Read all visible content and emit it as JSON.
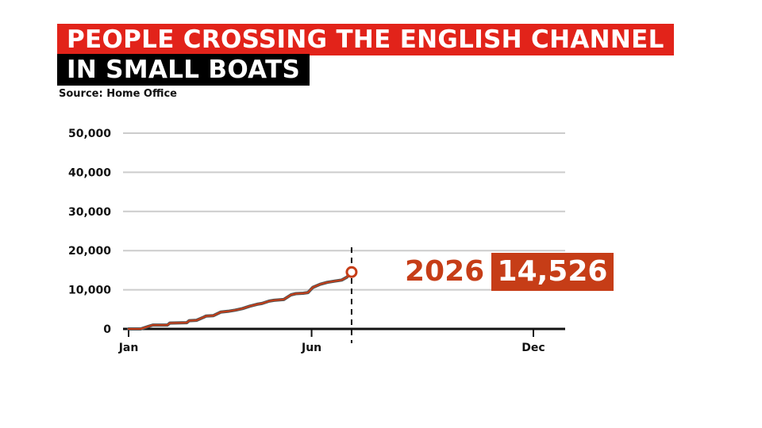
{
  "header": {
    "title_line1": "PEOPLE CROSSING THE ENGLISH CHANNEL",
    "title_line2": "IN SMALL BOATS",
    "source": "Source: Home Office"
  },
  "callout": {
    "year": "2026",
    "value": "14,526"
  },
  "colors": {
    "title_bg": "#e2231a",
    "title2_bg": "#000000",
    "accent": "#c63d17",
    "grid": "#cccccc",
    "axis": "#111111"
  },
  "chart_data": {
    "type": "line",
    "title": "PEOPLE CROSSING THE ENGLISH CHANNEL IN SMALL BOATS",
    "xlabel": "",
    "ylabel": "",
    "x_ticks": [
      {
        "label": "Jan",
        "day": 0
      },
      {
        "label": "Jun",
        "day": 151
      },
      {
        "label": "Dec",
        "day": 334
      }
    ],
    "x_range_days": [
      0,
      365
    ],
    "ylim": [
      0,
      50000
    ],
    "y_ticks": [
      {
        "label": "0",
        "value": 0
      },
      {
        "label": "10,000",
        "value": 10000
      },
      {
        "label": "20,000",
        "value": 20000
      },
      {
        "label": "30,000",
        "value": 30000
      },
      {
        "label": "40,000",
        "value": 40000
      },
      {
        "label": "50,000",
        "value": 50000
      }
    ],
    "grid": true,
    "series": [
      {
        "name": "2026",
        "points": [
          [
            0,
            0
          ],
          [
            10,
            0
          ],
          [
            16,
            600
          ],
          [
            20,
            1000
          ],
          [
            32,
            1000
          ],
          [
            34,
            1500
          ],
          [
            48,
            1600
          ],
          [
            50,
            2100
          ],
          [
            56,
            2200
          ],
          [
            62,
            3000
          ],
          [
            64,
            3300
          ],
          [
            70,
            3400
          ],
          [
            76,
            4300
          ],
          [
            82,
            4500
          ],
          [
            88,
            4800
          ],
          [
            94,
            5200
          ],
          [
            100,
            5800
          ],
          [
            106,
            6300
          ],
          [
            110,
            6500
          ],
          [
            116,
            7100
          ],
          [
            120,
            7300
          ],
          [
            124,
            7400
          ],
          [
            128,
            7500
          ],
          [
            134,
            8700
          ],
          [
            138,
            9000
          ],
          [
            144,
            9100
          ],
          [
            148,
            9300
          ],
          [
            152,
            10600
          ],
          [
            158,
            11400
          ],
          [
            164,
            11900
          ],
          [
            170,
            12200
          ],
          [
            176,
            12500
          ],
          [
            180,
            13200
          ],
          [
            184,
            14526
          ]
        ]
      }
    ],
    "marker": {
      "day": 184,
      "value": 14526
    }
  }
}
